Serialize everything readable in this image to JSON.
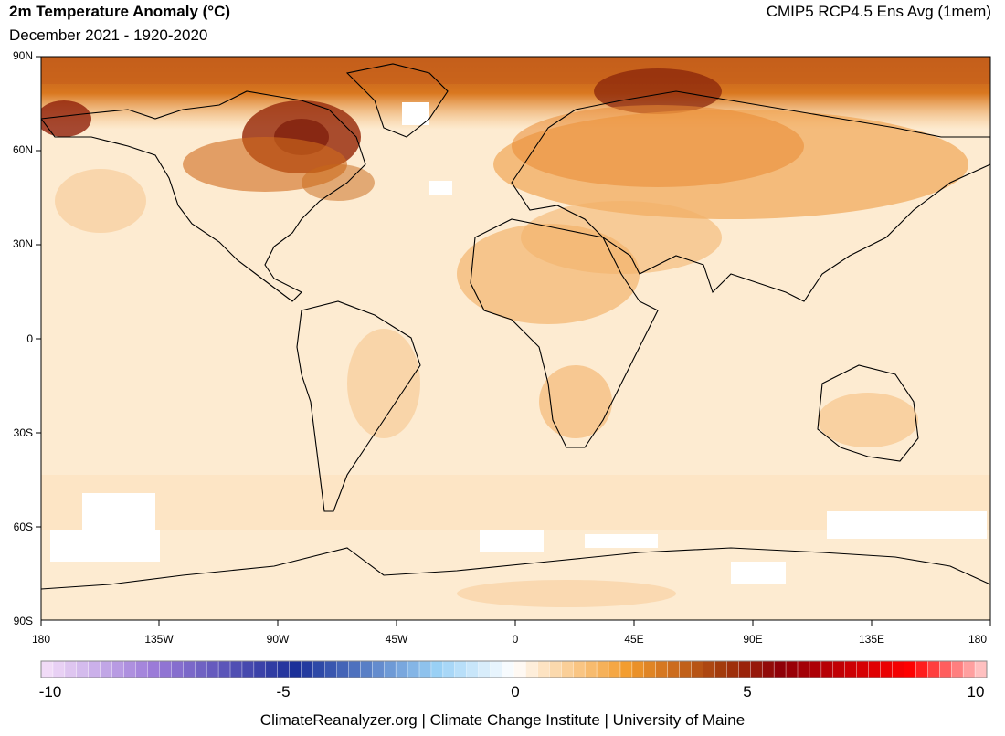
{
  "header": {
    "title": "2m Temperature Anomaly (°C)",
    "subtitle": "December 2021 - 1920-2020",
    "model": "CMIP5 RCP4.5 Ens Avg (1mem)"
  },
  "map": {
    "projection": "equirectangular",
    "lat_labels": [
      "90N",
      "60N",
      "30N",
      "0",
      "30S",
      "60S",
      "90S"
    ],
    "lon_labels": [
      "180",
      "135W",
      "90W",
      "45W",
      "0",
      "45E",
      "90E",
      "135E",
      "180"
    ],
    "background_anomaly_color": "#fdebd1",
    "land_outline_color": "#000000"
  },
  "colorbar": {
    "min": -10,
    "max": 10,
    "labels": [
      "-10",
      "-5",
      "0",
      "5",
      "10"
    ],
    "colors": {
      "cold_extreme": "#f6e0f9",
      "purple": "#9a7ad8",
      "deep_blue": "#1a2f98",
      "light_blue": "#9ad1f6",
      "zero": "#ffffff",
      "light_orange": "#fde4c4",
      "orange": "#f39c2d",
      "brown": "#a23a0c",
      "dark_red": "#8e0008",
      "red": "#ff0000",
      "hot_extreme": "#ffd0d0"
    }
  },
  "footer": {
    "credit": "ClimateReanalyzer.org | Climate Change Institute | University of Maine"
  }
}
